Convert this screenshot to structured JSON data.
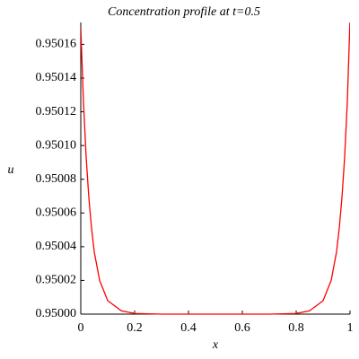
{
  "chart_data": {
    "type": "line",
    "title": "Concentration profile at t=0.5",
    "xlabel": "x",
    "ylabel": "u",
    "x": [
      0,
      0.01,
      0.02,
      0.03,
      0.04,
      0.05,
      0.07,
      0.1,
      0.15,
      0.2,
      0.3,
      0.4,
      0.5,
      0.6,
      0.7,
      0.8,
      0.85,
      0.9,
      0.93,
      0.95,
      0.96,
      0.97,
      0.98,
      0.99,
      1
    ],
    "values": [
      0.95017,
      0.950126,
      0.950093,
      0.950069,
      0.950051,
      0.950037,
      0.95002,
      0.950008,
      0.950002,
      0.9500004,
      0.95,
      0.95,
      0.95,
      0.95,
      0.95,
      0.9500004,
      0.950002,
      0.950008,
      0.95002,
      0.950037,
      0.950051,
      0.950069,
      0.950093,
      0.950126,
      0.950175
    ],
    "color": "#ff0000",
    "xlim": [
      0,
      1
    ],
    "xticks": [
      0,
      0.2,
      0.4,
      0.6,
      0.8,
      1
    ],
    "ylim": [
      0.95,
      0.950173
    ],
    "yticks": [
      {
        "value": 0.95,
        "label": "0.95000"
      },
      0.95002,
      0.95004,
      0.95006,
      0.95008,
      {
        "value": 0.9501,
        "label": "0.95010"
      },
      0.95012,
      0.95014,
      0.95016
    ]
  }
}
